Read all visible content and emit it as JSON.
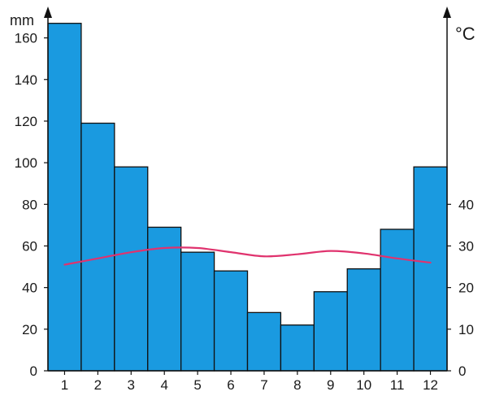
{
  "chart_data": {
    "type": "bar",
    "categories": [
      "1",
      "2",
      "3",
      "4",
      "5",
      "6",
      "7",
      "8",
      "9",
      "10",
      "11",
      "12"
    ],
    "series": [
      {
        "type": "bar",
        "axis": "left",
        "color": "#1a9ae0",
        "values": [
          167,
          119,
          98,
          69,
          57,
          48,
          28,
          22,
          38,
          49,
          68,
          98
        ]
      },
      {
        "type": "line",
        "axis": "right",
        "color": "#e0336e",
        "values": [
          25.5,
          27.0,
          28.5,
          29.5,
          29.5,
          28.5,
          27.5,
          28.0,
          28.8,
          28.2,
          27.0,
          26.0
        ]
      }
    ],
    "left_axis": {
      "unit": "mm",
      "ylim": [
        0,
        170
      ],
      "ticks": [
        0,
        20,
        40,
        60,
        80,
        100,
        120,
        140,
        160
      ]
    },
    "right_axis": {
      "unit": "°C",
      "ylim": [
        0,
        85
      ],
      "ticks": [
        0,
        10,
        20,
        30,
        40
      ]
    },
    "grid": false,
    "legend": "none"
  }
}
